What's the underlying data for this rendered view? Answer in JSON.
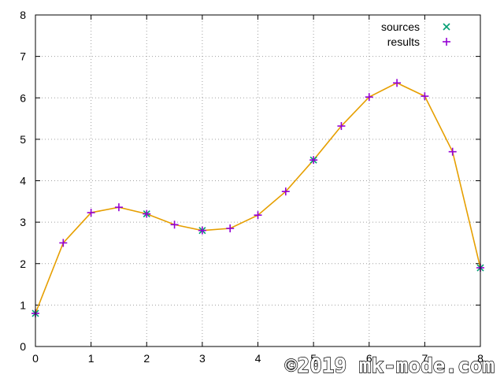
{
  "chart_data": {
    "type": "line",
    "xlim": [
      0,
      8
    ],
    "ylim": [
      0,
      8
    ],
    "x_ticks": [
      "0",
      "1",
      "2",
      "3",
      "4",
      "5",
      "6",
      "7",
      "8"
    ],
    "y_ticks": [
      "0",
      "1",
      "2",
      "3",
      "4",
      "5",
      "6",
      "7",
      "8"
    ],
    "grid": true,
    "legend_position": "top-right",
    "series": [
      {
        "name": "sources",
        "marker": "x",
        "color": "#009e73",
        "x": [
          0,
          2,
          3,
          5,
          8
        ],
        "y": [
          0.8,
          3.2,
          2.8,
          4.5,
          1.9
        ]
      },
      {
        "name": "results",
        "marker": "+",
        "color": "#9400d3",
        "line_color": "#e69f00",
        "x": [
          0,
          0.5,
          1,
          1.5,
          2,
          2.5,
          3,
          3.5,
          4,
          4.5,
          5,
          5.5,
          6,
          6.5,
          7,
          7.5,
          8
        ],
        "y": [
          0.8,
          2.5,
          3.23,
          3.36,
          3.2,
          2.94,
          2.8,
          2.85,
          3.17,
          3.74,
          4.5,
          5.32,
          6.02,
          6.36,
          6.04,
          4.7,
          1.9
        ]
      }
    ]
  },
  "watermark": "©2019 mk-mode.com"
}
